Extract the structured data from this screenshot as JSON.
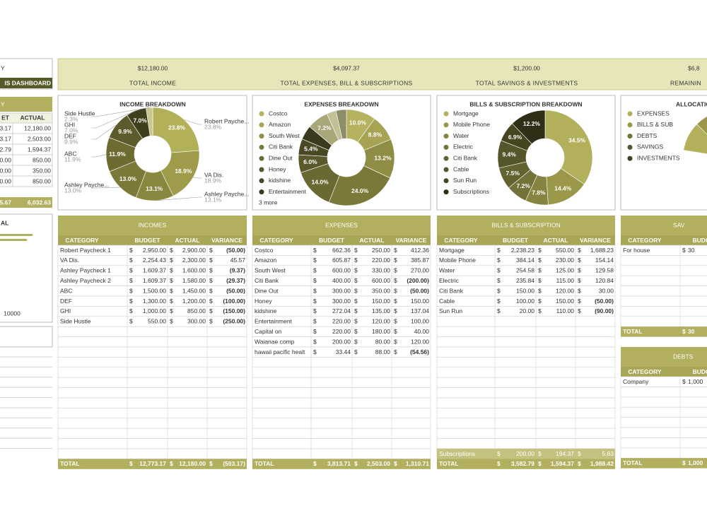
{
  "currency": "$",
  "left_panel": {
    "title": "Y",
    "banner": "IS DASHBOARD",
    "table": {
      "title": "Y",
      "columns": [
        "ET",
        "ACTUAL"
      ],
      "rows": [
        [
          "3.17",
          "12,180.00"
        ],
        [
          "3.17",
          "2,503.00"
        ],
        [
          "2.79",
          "1,594.37"
        ],
        [
          "0.00",
          "850.00"
        ],
        [
          "0.00",
          "350.00"
        ],
        [
          "0.00",
          "850.00"
        ]
      ],
      "total": [
        "5.67",
        "6,032.63"
      ]
    },
    "chart": {
      "title": "AL",
      "tick": "10000"
    }
  },
  "summary": [
    {
      "value": "$12,180.00",
      "label": "TOTAL INCOME"
    },
    {
      "value": "$4,097.37",
      "label": "TOTAL EXPENSES, BILL & SUBSCRIPTIONS"
    },
    {
      "value": "$1,200.00",
      "label": "TOTAL SAVINGS & INVESTMENTS"
    },
    {
      "value": "$6,8",
      "label": "REMAININ"
    }
  ],
  "charts": [
    {
      "type": "pie",
      "title": "INCOME BREAKDOWN",
      "legend": "callouts",
      "categories": [
        "Robert Payche...",
        "VA Dis.",
        "Ashley Payche...",
        "Ashley Payche...",
        "ABC",
        "DEF",
        "GHI",
        "Side Hustle"
      ],
      "values": [
        23.8,
        18.9,
        13.1,
        13.0,
        11.9,
        9.9,
        7.0,
        2.3
      ],
      "value_labels": [
        "23.8%",
        "18.9%",
        "13.1%",
        "13.0%",
        "11.9%",
        "9.9%",
        "7.0%",
        "2.3%"
      ],
      "colors": [
        "#b3b05a",
        "#9e9b4b",
        "#8a873f",
        "#7c7a39",
        "#6d6b32",
        "#5c5b2b",
        "#3f3f1d",
        "#c9c78f"
      ]
    },
    {
      "type": "pie",
      "title": "EXPENSES BREAKDOWN",
      "legend": "left",
      "categories": [
        "Costco",
        "Amazon",
        "South West",
        "Citi Bank",
        "Dine Out",
        "Honey",
        "kidshine",
        "Entertainment",
        null,
        null,
        null
      ],
      "more_label": "3 more",
      "values": [
        10.0,
        8.8,
        13.2,
        24.0,
        14.0,
        6.0,
        5.4,
        4.8,
        7.2,
        3.2,
        3.5
      ],
      "value_labels": [
        "10.0%",
        "8.8%",
        "13.2%",
        "24.0%",
        "14.0%",
        "6.0%",
        "5.4%",
        null,
        "7.2%",
        null,
        null
      ],
      "colors": [
        "#b5b260",
        "#a6a355",
        "#8f8c44",
        "#7b793a",
        "#6a6833",
        "#5a592c",
        "#4a4925",
        "#3a3a1e",
        "#a9a67a",
        "#c2c096",
        "#8e8d6a"
      ]
    },
    {
      "type": "pie",
      "title": "BILLS & SUBSCRIPTION BREAKDOWN",
      "legend": "left",
      "categories": [
        "Mortgage",
        "Mobile Phone",
        "Water",
        "Electric",
        "Citi Bank",
        "Cable",
        "Sun Run",
        "Subscriptions"
      ],
      "values": [
        34.5,
        14.4,
        7.8,
        7.2,
        7.5,
        9.4,
        6.9,
        12.2
      ],
      "value_labels": [
        "34.5%",
        "14.4%",
        "7.8%",
        "7.2%",
        "7.5%",
        "9.4%",
        "6.9%",
        "12.2%"
      ],
      "colors": [
        "#b3b05c",
        "#9b9849",
        "#86843f",
        "#737238",
        "#636231",
        "#55552b",
        "#45451f",
        "#2f2f17"
      ]
    },
    {
      "type": "partial",
      "title": "ALLOCATIO",
      "legend": "left",
      "categories": [
        "EXPENSES",
        "BILLS & SUB",
        "DEBTS",
        "SAVINGS",
        "INVESTMENTS"
      ],
      "colors": [
        "#b3b05c",
        "#9b9849",
        "#737238",
        "#55552b",
        "#3f3f1d"
      ],
      "slice_label_fragments": [
        "13.8"
      ]
    }
  ],
  "tables": [
    {
      "title": "INCOMES",
      "columns": [
        "CATEGORY",
        "BUDGET",
        "ACTUAL",
        "VARIANCE"
      ],
      "rows": [
        [
          "Robert Paycheck 1",
          "2,950.00",
          "2,900.00",
          "(50.00)"
        ],
        [
          "VA Dis.",
          "2,254.43",
          "2,300.00",
          "45.57"
        ],
        [
          "Ashley Paycheck 1",
          "1,609.37",
          "1,600.00",
          "(9.37)"
        ],
        [
          "Ashley Paycheck 2",
          "1,609.37",
          "1,580.00",
          "(29.37)"
        ],
        [
          "ABC",
          "1,500.00",
          "1,450.00",
          "(50.00)"
        ],
        [
          "DEF",
          "1,300.00",
          "1,200.00",
          "(100.00)"
        ],
        [
          "GHI",
          "1,000.00",
          "850.00",
          "(150.00)"
        ],
        [
          "Side Hustle",
          "550.00",
          "300.00",
          "(250.00)"
        ]
      ],
      "total": [
        "TOTAL",
        "12,773.17",
        "12,180.00",
        "(593.17)"
      ]
    },
    {
      "title": "EXPENSES",
      "columns": [
        "CATEGORY",
        "BUDGET",
        "ACTUAL",
        "VARIANCE"
      ],
      "rows": [
        [
          "Costco",
          "662.36",
          "250.00",
          "412.36"
        ],
        [
          "Amazon",
          "605.87",
          "220.00",
          "385.87"
        ],
        [
          "South West",
          "600.00",
          "330.00",
          "270.00"
        ],
        [
          "Citi Bank",
          "400.00",
          "600.00",
          "(200.00)"
        ],
        [
          "Dine Out",
          "300.00",
          "350.00",
          "(50.00)"
        ],
        [
          "Honey",
          "300.00",
          "150.00",
          "150.00"
        ],
        [
          "kidshine",
          "272.04",
          "135.00",
          "137.04"
        ],
        [
          "Entertainment",
          "220.00",
          "120.00",
          "100.00"
        ],
        [
          "Capital on",
          "220.00",
          "180.00",
          "40.00"
        ],
        [
          "Waianae comp",
          "200.00",
          "80.00",
          "120.00"
        ],
        [
          "hawaii pacific healt",
          "33.44",
          "88.00",
          "(54.56)"
        ]
      ],
      "total": [
        "TOTAL",
        "3,813.71",
        "2,503.00",
        "1,310.71"
      ]
    },
    {
      "title": "BILLS & SUBSCRIPTION",
      "columns": [
        "CATEGORY",
        "BUDGET",
        "ACTUAL",
        "VARIANCE"
      ],
      "rows": [
        [
          "Mortgage",
          "2,238.23",
          "550.00",
          "1,688.23"
        ],
        [
          "Mobile Phone",
          "384.14",
          "230.00",
          "154.14"
        ],
        [
          "Water",
          "254.58",
          "125.00",
          "129.58"
        ],
        [
          "Electric",
          "235.84",
          "115.00",
          "120.84"
        ],
        [
          "Citi Bank",
          "150.00",
          "120.00",
          "30.00"
        ],
        [
          "Cable",
          "100.00",
          "150.00",
          "(50.00)"
        ],
        [
          "Sun Run",
          "20.00",
          "110.00",
          "(90.00)"
        ]
      ],
      "footer_rows": [
        [
          "Subscriptions",
          "200.00",
          "194.37",
          "5.63"
        ]
      ],
      "total": [
        "TOTAL",
        "3,582.79",
        "1,594.37",
        "1,988.42"
      ]
    },
    {
      "title": "SAV",
      "columns": [
        "CATEGORY",
        "BUDG"
      ],
      "rows": [
        [
          "For house",
          "30"
        ]
      ],
      "total": [
        "TOTAL",
        "30"
      ]
    },
    {
      "title": "DEBTS",
      "columns": [
        "CATEGORY",
        "BUDG"
      ],
      "rows": [
        [
          "Company",
          "1,000"
        ]
      ],
      "total": [
        "TOTAL",
        "1,000"
      ]
    }
  ]
}
